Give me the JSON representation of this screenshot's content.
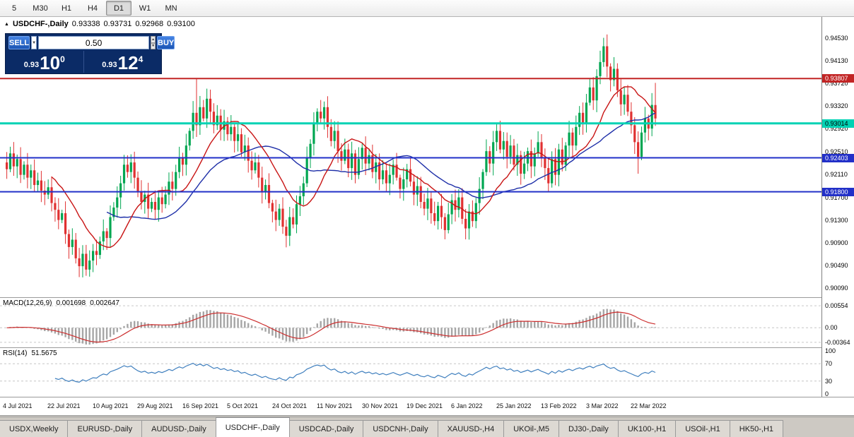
{
  "toolbar": {
    "timeframes": [
      {
        "label": "5"
      },
      {
        "label": "M30"
      },
      {
        "label": "H1"
      },
      {
        "label": "H4"
      },
      {
        "label": "D1",
        "active": true
      },
      {
        "label": "W1"
      },
      {
        "label": "MN"
      }
    ]
  },
  "chart_header": {
    "symbol_title": "USDCHF-,Daily",
    "open": "0.93338",
    "high": "0.93731",
    "low": "0.92968",
    "close": "0.93100"
  },
  "trade_panel": {
    "sell_label": "SELL",
    "buy_label": "BUY",
    "volume": "0.50",
    "sell_price": {
      "prefix": "0.93",
      "big": "10",
      "sup": "0"
    },
    "buy_price": {
      "prefix": "0.93",
      "big": "12",
      "sup": "4"
    }
  },
  "icons": {
    "collapse": "▲",
    "dropdown": "▼",
    "spin_up": "▲",
    "spin_down": "▼"
  },
  "chart_data": {
    "type": "candlestick",
    "symbol": "USDCHF-",
    "timeframe": "Daily",
    "price_min": 0.8993,
    "price_max": 0.949,
    "y_axis_labels": [
      "0.94530",
      "0.94130",
      "0.93720",
      "0.93320",
      "0.92920",
      "0.92510",
      "0.92110",
      "0.91700",
      "0.91300",
      "0.90900",
      "0.90490",
      "0.90090"
    ],
    "x_tick_labels": [
      "4 Jul 2021",
      "22 Jul 2021",
      "10 Aug 2021",
      "29 Aug 2021",
      "16 Sep 2021",
      "5 Oct 2021",
      "24 Oct 2021",
      "11 Nov 2021",
      "30 Nov 2021",
      "19 Dec 2021",
      "6 Jan 2022",
      "25 Jan 2022",
      "13 Feb 2022",
      "3 Mar 2022",
      "22 Mar 2022"
    ],
    "x_tick_step": 13,
    "closes": [
      0.922,
      0.9248,
      0.9225,
      0.9238,
      0.921,
      0.9228,
      0.9205,
      0.9218,
      0.9192,
      0.92,
      0.9182,
      0.9175,
      0.9188,
      0.916,
      0.9148,
      0.913,
      0.9142,
      0.9105,
      0.9082,
      0.9095,
      0.9062,
      0.9048,
      0.907,
      0.9042,
      0.9058,
      0.9075,
      0.9068,
      0.9092,
      0.911,
      0.9098,
      0.9135,
      0.9152,
      0.917,
      0.9195,
      0.9228,
      0.9215,
      0.9232,
      0.9205,
      0.918,
      0.9162,
      0.9175,
      0.915,
      0.9162,
      0.9148,
      0.917,
      0.9158,
      0.9175,
      0.9198,
      0.9185,
      0.9215,
      0.924,
      0.9228,
      0.9262,
      0.9288,
      0.932,
      0.9298,
      0.933,
      0.931,
      0.9345,
      0.9322,
      0.9298,
      0.9315,
      0.929,
      0.9305,
      0.9282,
      0.9295,
      0.927,
      0.9282,
      0.925,
      0.9262,
      0.9235,
      0.9218,
      0.9232,
      0.9205,
      0.918,
      0.9192,
      0.916,
      0.9145,
      0.913,
      0.915,
      0.9118,
      0.9102,
      0.9135,
      0.9122,
      0.9158,
      0.9172,
      0.9195,
      0.924,
      0.9265,
      0.93,
      0.9322,
      0.931,
      0.933,
      0.9295,
      0.927,
      0.9288,
      0.9252,
      0.9235,
      0.9255,
      0.9222,
      0.9248,
      0.921,
      0.9238,
      0.9258,
      0.923,
      0.9245,
      0.9215,
      0.9232,
      0.9202,
      0.9218,
      0.9195,
      0.921,
      0.9228,
      0.9205,
      0.9185,
      0.9202,
      0.922,
      0.9198,
      0.9175,
      0.919,
      0.9162,
      0.915,
      0.9168,
      0.9142,
      0.9128,
      0.9155,
      0.9135,
      0.9112,
      0.914,
      0.9165,
      0.9148,
      0.917,
      0.9132,
      0.9115,
      0.9145,
      0.9128,
      0.916,
      0.9185,
      0.9215,
      0.9252,
      0.923,
      0.9268,
      0.9288,
      0.9255,
      0.927,
      0.9242,
      0.9262,
      0.9228,
      0.9245,
      0.9212,
      0.923,
      0.9252,
      0.9225,
      0.9248,
      0.9268,
      0.924,
      0.9222,
      0.9195,
      0.9238,
      0.921,
      0.9255,
      0.9228,
      0.9262,
      0.9285,
      0.9262,
      0.9295,
      0.932,
      0.9302,
      0.9338,
      0.9365,
      0.9342,
      0.9385,
      0.941,
      0.9438,
      0.9402,
      0.9378,
      0.9398,
      0.936,
      0.9335,
      0.9352,
      0.9322,
      0.9298,
      0.9268,
      0.9242,
      0.9285,
      0.931,
      0.9292,
      0.9334,
      0.931
    ],
    "overrides": {
      "23": {
        "low": 0.9031
      },
      "55": {
        "high": 0.9381
      },
      "173": {
        "high": 0.9453
      },
      "183": {
        "low": 0.9212
      },
      "188": {
        "open": 0.93338,
        "high": 0.93731,
        "low": 0.92968,
        "close": 0.931
      }
    },
    "wick_base": 0.0005,
    "wick_var": 0.0016,
    "ma_fast_period": 14,
    "ma_slow_period": 30,
    "levels": [
      {
        "price": 0.93807,
        "label": "0.93807",
        "color": "#c22525",
        "text": "#ffffff",
        "width": 2
      },
      {
        "price": 0.93014,
        "label": "0.93014",
        "color": "#00d2b4",
        "text": "#000000",
        "width": 3
      },
      {
        "price": 0.92403,
        "label": "0.92403",
        "color": "#2230c8",
        "text": "#ffffff",
        "width": 2
      },
      {
        "price": 0.918,
        "label": "0.91800",
        "color": "#2230c8",
        "text": "#ffffff",
        "width": 2
      }
    ]
  },
  "macd": {
    "label": "MACD(12,26,9)",
    "value1": "0.001698",
    "value2": "0.002647",
    "axis": [
      "0.00554",
      "0.00",
      "-0.00364"
    ],
    "scale_min": -0.0049,
    "scale_max": 0.0075,
    "fast": 12,
    "slow": 26,
    "signal": 9
  },
  "rsi": {
    "label": "RSI(14)",
    "value": "51.5675",
    "period": 14,
    "axis": [
      "100",
      "70",
      "30",
      "0"
    ],
    "levels": [
      70,
      30
    ]
  },
  "tabs": [
    {
      "label": "USDX,Weekly"
    },
    {
      "label": "EURUSD-,Daily"
    },
    {
      "label": "AUDUSD-,Daily"
    },
    {
      "label": "USDCHF-,Daily",
      "active": true
    },
    {
      "label": "USDCAD-,Daily"
    },
    {
      "label": "USDCNH-,Daily"
    },
    {
      "label": "XAUUSD-,H4"
    },
    {
      "label": "UKOil-,M5"
    },
    {
      "label": "DJ30-,Daily"
    },
    {
      "label": "UK100-,H1"
    },
    {
      "label": "USOil-,H1"
    },
    {
      "label": "HK50-,H1"
    }
  ],
  "colors": {
    "up": "#00a651",
    "down": "#e03131",
    "ma_fast": "#c81414",
    "ma_slow": "#1e2fa8",
    "macd_hist": "#a6a6a6",
    "macd_signal": "#cc2e2e",
    "rsi_line": "#3f7fbe",
    "dash": "#c6c6c6"
  }
}
